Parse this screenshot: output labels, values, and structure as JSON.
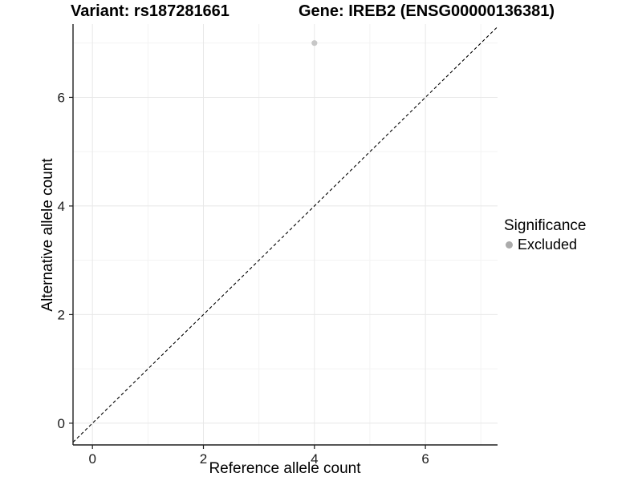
{
  "chart_data": {
    "type": "scatter",
    "title_left": "Variant: rs187281661",
    "title_right": "Gene: IREB2 (ENSG00000136381)",
    "xlabel": "Reference allele count",
    "ylabel": "Alternative allele count",
    "xlim": [
      -0.35,
      7.3
    ],
    "ylim": [
      -0.4,
      7.35
    ],
    "x_ticks": [
      0,
      2,
      4,
      6
    ],
    "y_ticks": [
      0,
      2,
      4,
      6
    ],
    "x_minor_ticks": [
      1,
      3,
      5,
      7
    ],
    "y_minor_ticks": [
      1,
      3,
      5,
      7
    ],
    "grid": "major and minor gridlines, white panel",
    "series": [
      {
        "name": "Excluded",
        "color": "#c7c7c7",
        "points": [
          {
            "x": 4,
            "y": 7
          }
        ]
      }
    ],
    "reference_line": {
      "type": "identity y=x",
      "style": "dashed",
      "color": "#000000"
    },
    "legend": {
      "title": "Significance",
      "position": "right",
      "items": [
        {
          "label": "Excluded",
          "color": "#ababab"
        }
      ]
    }
  },
  "colors": {
    "background": "#ffffff",
    "grid_major": "#e8e8e8",
    "grid_minor": "#f3f3f3",
    "axis_line": "#1f1f1f",
    "tick_text": "#1a1a1a",
    "point": "#c7c7c7"
  }
}
